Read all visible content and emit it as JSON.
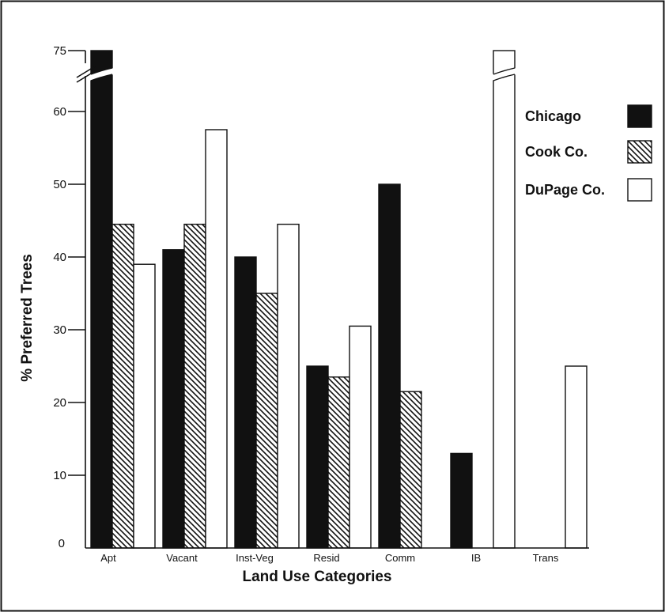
{
  "chart_data": {
    "type": "bar",
    "title": "",
    "xlabel": "Land Use Categories",
    "ylabel": "% Preferred Trees",
    "ylim": [
      0,
      75
    ],
    "y_axis_break": "between 60 and 75",
    "y_ticks": [
      0,
      10,
      20,
      30,
      40,
      50,
      60,
      75
    ],
    "y_tick_labels": [
      "0",
      "10",
      "20",
      "30",
      "40",
      "50",
      "60",
      "75"
    ],
    "categories": [
      "Apt",
      "Vacant",
      "Inst-Veg",
      "Resid",
      "Comm",
      "IB",
      "Trans"
    ],
    "series": [
      {
        "name": "Chicago",
        "values": [
          61,
          41,
          40,
          25,
          50,
          13,
          null
        ]
      },
      {
        "name": "Cook Co.",
        "values": [
          44.5,
          44.5,
          35,
          23.5,
          21.5,
          null,
          null
        ]
      },
      {
        "name": "DuPage Co.",
        "values": [
          39,
          57.5,
          44.5,
          30.5,
          null,
          75,
          25
        ]
      }
    ],
    "series_fill": [
      "solid-black",
      "diagonal-hatch",
      "white"
    ],
    "colors": {
      "ink": "#111111",
      "paper": "#ffffff"
    },
    "legend_position": "top-right",
    "grid": false
  }
}
